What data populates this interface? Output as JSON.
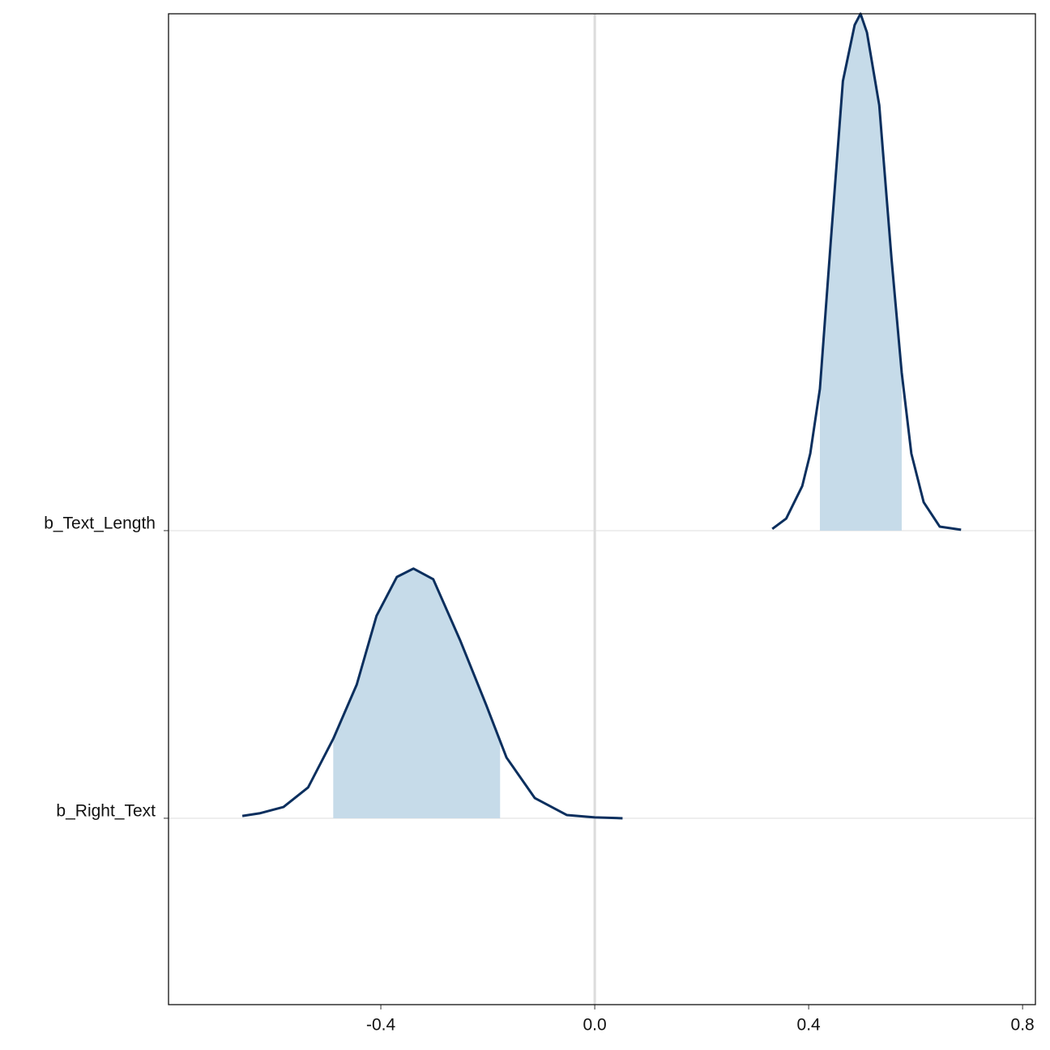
{
  "chart_data": {
    "type": "ridgeline",
    "categories": [
      "b_Right_Text",
      "b_Text_Length"
    ],
    "series": [
      {
        "name": "b_Right_Text",
        "color": "#0b2f5e",
        "fill": "#c6dbe9",
        "x": [
          -0.659,
          -0.627,
          -0.582,
          -0.536,
          -0.489,
          -0.445,
          -0.408,
          -0.37,
          -0.339,
          -0.302,
          -0.252,
          -0.203,
          -0.165,
          -0.112,
          -0.052,
          0,
          0.052
        ],
        "values": [
          0.008,
          0.017,
          0.039,
          0.107,
          0.276,
          0.465,
          0.704,
          0.839,
          0.868,
          0.831,
          0.62,
          0.394,
          0.211,
          0.07,
          0.011,
          0.003,
          0
        ],
        "interval": [
          -0.489,
          -0.177
        ]
      },
      {
        "name": "b_Text_Length",
        "color": "#0b2f5e",
        "fill": "#c6dbe9",
        "x": [
          0.332,
          0.358,
          0.388,
          0.403,
          0.421,
          0.441,
          0.464,
          0.486,
          0.497,
          0.509,
          0.532,
          0.555,
          0.574,
          0.592,
          0.615,
          0.645,
          0.685
        ],
        "values": [
          0.006,
          0.042,
          0.155,
          0.268,
          0.493,
          0.997,
          1.563,
          1.758,
          1.797,
          1.732,
          1.479,
          0.944,
          0.549,
          0.268,
          0.099,
          0.014,
          0.003
        ],
        "interval": [
          0.421,
          0.574
        ]
      }
    ],
    "xlim": [
      -0.797,
      0.824
    ],
    "xticks": [
      {
        "value": -0.4,
        "label": "-0.4"
      },
      {
        "value": 0,
        "label": "0.0"
      },
      {
        "value": 0.4,
        "label": "0.4"
      },
      {
        "value": 0.8,
        "label": "0.8"
      }
    ],
    "ylim": [
      -0.648,
      2.797
    ],
    "reference_line": 0,
    "grid": true
  }
}
